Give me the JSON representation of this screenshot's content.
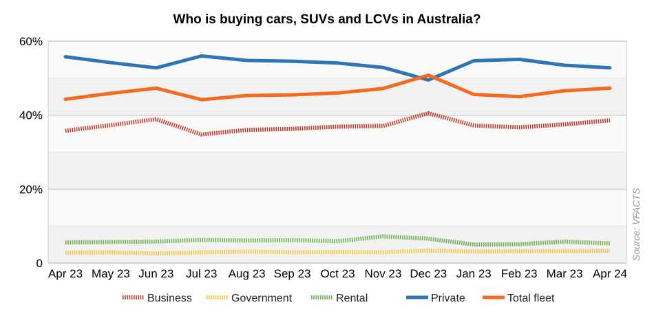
{
  "chart_data": {
    "type": "line",
    "title": "Who is buying cars, SUVs and LCVs in Australia?",
    "source": "Source: VFACTS",
    "categories": [
      "Apr 23",
      "May 23",
      "Jun 23",
      "Jul 23",
      "Aug 23",
      "Sep 23",
      "Oct 23",
      "Nov 23",
      "Dec 23",
      "Jan 23",
      "Feb 23",
      "Mar 23",
      "Apr 24"
    ],
    "y_tick_labels": [
      "0",
      "20%",
      "40%",
      "60%"
    ],
    "ylim": [
      0,
      60
    ],
    "grid": true,
    "legend_position": "bottom",
    "series": [
      {
        "name": "Business",
        "color": "#c0392b",
        "style": "dotted",
        "values": [
          35.8,
          37.3,
          38.9,
          34.8,
          36.0,
          36.3,
          36.9,
          37.1,
          40.5,
          37.2,
          36.7,
          37.5,
          38.6
        ]
      },
      {
        "name": "Government",
        "color": "#f5c242",
        "style": "dotted",
        "values": [
          2.8,
          2.9,
          2.6,
          2.9,
          3.1,
          2.9,
          3.0,
          2.9,
          3.4,
          3.1,
          3.2,
          3.2,
          3.3
        ]
      },
      {
        "name": "Rental",
        "color": "#6ab04c",
        "style": "dotted",
        "values": [
          5.6,
          5.7,
          5.8,
          6.3,
          6.1,
          6.2,
          5.9,
          7.2,
          6.6,
          5.0,
          5.1,
          5.8,
          5.3
        ]
      },
      {
        "name": "Private",
        "color": "#2e75b6",
        "style": "solid",
        "values": [
          55.8,
          54.2,
          52.8,
          56.0,
          54.8,
          54.6,
          54.1,
          52.9,
          49.5,
          54.7,
          55.1,
          53.5,
          52.8
        ]
      },
      {
        "name": "Total fleet",
        "color": "#f26b21",
        "style": "solid",
        "values": [
          44.3,
          45.9,
          47.3,
          44.2,
          45.3,
          45.5,
          46.0,
          47.2,
          50.8,
          45.6,
          45.0,
          46.6,
          47.3
        ]
      }
    ]
  }
}
